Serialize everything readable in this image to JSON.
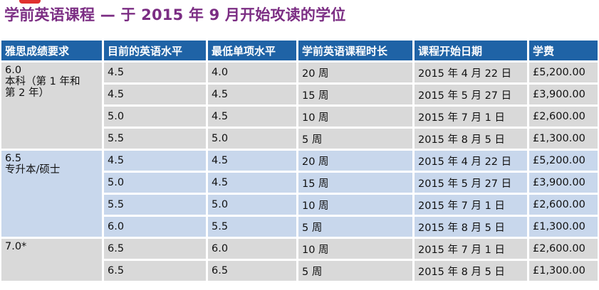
{
  "title": "学前英语课程 — 于 2015 年 9 月开始攻读的学位",
  "headers": [
    "雅思成绩要求",
    "目前的英语水平",
    "最低单项水平",
    "学前英语课程时长",
    "课程开始日期",
    "学费"
  ],
  "groups": [
    {
      "requirement_lines": [
        "6.0",
        "本科（第 1 年和",
        "第 2 年）"
      ],
      "rows": [
        {
          "current": "4.5",
          "minimum": "4.0",
          "duration": "20 周",
          "start": "2015 年 4 月 22 日",
          "fee": "£5,200.00"
        },
        {
          "current": "4.5",
          "minimum": "4.5",
          "duration": "15 周",
          "start": "2015 年 5 月 27 日",
          "fee": "£3,900.00"
        },
        {
          "current": "5.0",
          "minimum": "4.5",
          "duration": "10 周",
          "start": "2015 年 7 月 1 日",
          "fee": "£2,600.00"
        },
        {
          "current": "5.5",
          "minimum": "5.0",
          "duration": "5 周",
          "start": "2015 年 8 月 5 日",
          "fee": "£1,300.00"
        }
      ]
    },
    {
      "requirement_lines": [
        "6.5",
        "专升本/硕士"
      ],
      "rows": [
        {
          "current": "4.5",
          "minimum": "4.5",
          "duration": "20 周",
          "start": "2015 年 4 月 22 日",
          "fee": "£5,200.00"
        },
        {
          "current": "5.0",
          "minimum": "4.5",
          "duration": "15 周",
          "start": "2015 年 5 月 27 日",
          "fee": "£3,900.00"
        },
        {
          "current": "5.5",
          "minimum": "5.0",
          "duration": "10 周",
          "start": "2015 年 7 月 1 日",
          "fee": "£2,600.00"
        },
        {
          "current": "6.0",
          "minimum": "5.5",
          "duration": "5 周",
          "start": "2015 年 8 月 5 日",
          "fee": "£1,300.00"
        }
      ]
    },
    {
      "requirement_lines": [
        "7.0*"
      ],
      "rows": [
        {
          "current": "6.5",
          "minimum": "6.0",
          "duration": "10 周",
          "start": "2015 年 7 月 1 日",
          "fee": "£2,600.00"
        },
        {
          "current": "6.5",
          "minimum": "6.5",
          "duration": "5 周",
          "start": "2015 年 8 月 5 日",
          "fee": "£1,300.00"
        }
      ]
    }
  ],
  "colors": {
    "title": "#7b2d83",
    "header_bg": "#1f63a6",
    "group_gray": "#d9d9d9",
    "group_blue": "#c8d7ec",
    "accent_red": "#e0312f"
  }
}
